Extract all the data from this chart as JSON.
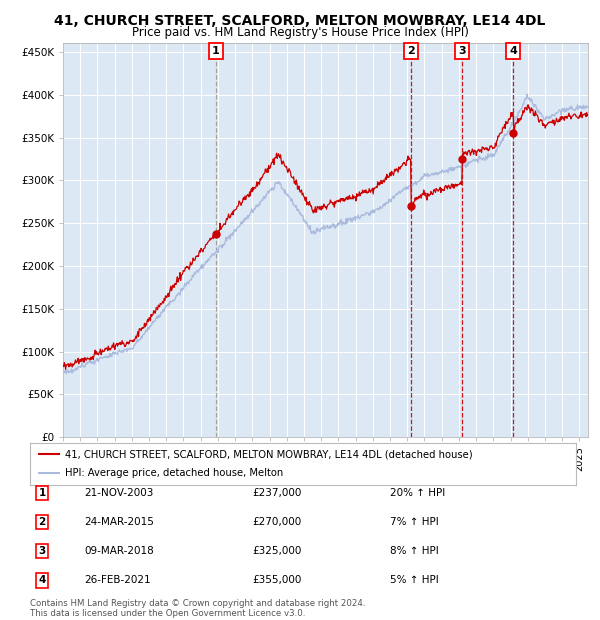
{
  "title1": "41, CHURCH STREET, SCALFORD, MELTON MOWBRAY, LE14 4DL",
  "title2": "Price paid vs. HM Land Registry's House Price Index (HPI)",
  "plot_bg_color": "#dce9f5",
  "line_color_property": "#cc0000",
  "line_color_hpi": "#aabbdd",
  "legend_label_property": "41, CHURCH STREET, SCALFORD, MELTON MOWBRAY, LE14 4DL (detached house)",
  "legend_label_hpi": "HPI: Average price, detached house, Melton",
  "transactions": [
    {
      "num": 1,
      "date": "21-NOV-2003",
      "price": 237000,
      "hpi_pct": "20%",
      "x_year": 2003.89
    },
    {
      "num": 2,
      "date": "24-MAR-2015",
      "price": 270000,
      "hpi_pct": "7%",
      "x_year": 2015.22
    },
    {
      "num": 3,
      "date": "09-MAR-2018",
      "price": 325000,
      "hpi_pct": "8%",
      "x_year": 2018.19
    },
    {
      "num": 4,
      "date": "26-FEB-2021",
      "price": 355000,
      "hpi_pct": "5%",
      "x_year": 2021.15
    }
  ],
  "footer": "Contains HM Land Registry data © Crown copyright and database right 2024.\nThis data is licensed under the Open Government Licence v3.0.",
  "ylim": [
    0,
    460000
  ],
  "xlim_start": 1995.0,
  "xlim_end": 2025.5,
  "hpi_seed": 10,
  "prop_seed": 20
}
